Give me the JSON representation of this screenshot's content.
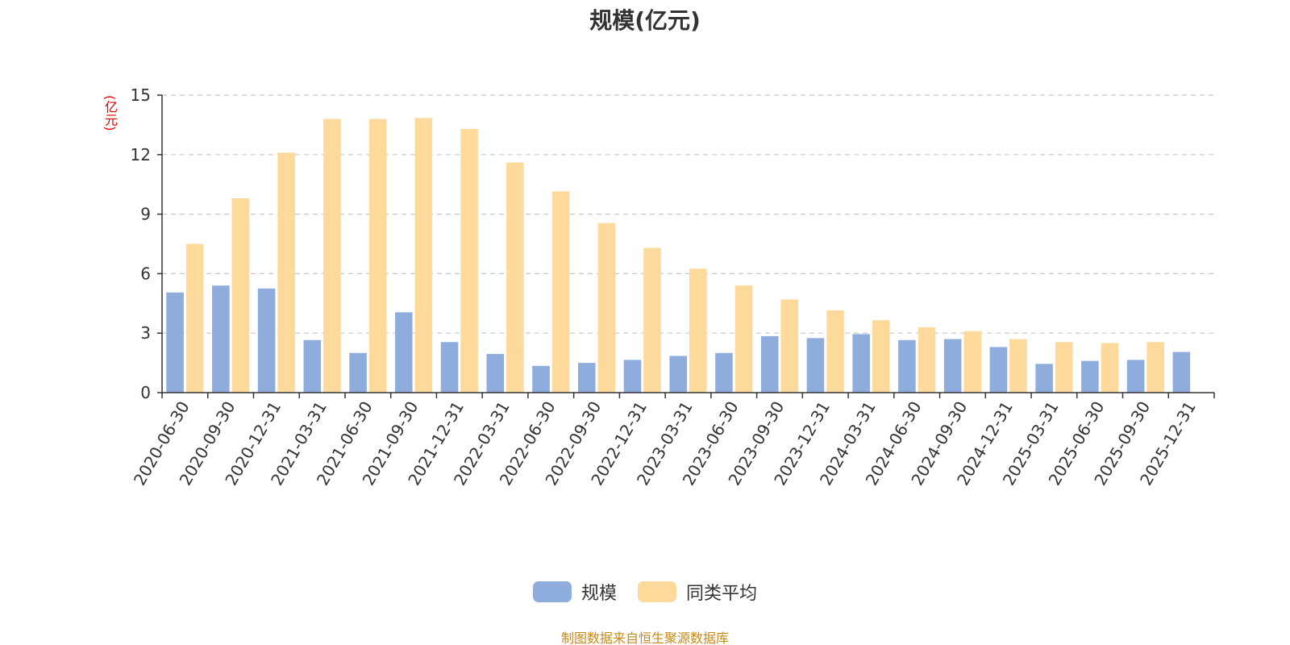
{
  "colors": {
    "series1": "#8eacdc",
    "series2": "#fdd99b",
    "axis": "#333333",
    "grid": "#c8c8c8",
    "unit": "#e00000",
    "source": "#c58a1b"
  },
  "chart_data": {
    "type": "bar",
    "title": "规模(亿元)",
    "ylabel": "(亿元)",
    "categories": [
      "2020-06-30",
      "2020-09-30",
      "2020-12-31",
      "2021-03-31",
      "2021-06-30",
      "2021-09-30",
      "2021-12-31",
      "2022-03-31",
      "2022-06-30",
      "2022-09-30",
      "2022-12-31",
      "2023-03-31",
      "2023-06-30",
      "2023-09-30",
      "2023-12-31",
      "2024-03-31",
      "2024-06-30",
      "2024-09-30",
      "2024-12-31",
      "2025-03-31",
      "2025-06-30",
      "2025-09-30",
      "2025-12-31"
    ],
    "yticks": [
      0,
      3,
      6,
      9,
      12,
      15
    ],
    "ylim": [
      0,
      15
    ],
    "grid": true,
    "legend_position": "bottom-center",
    "series": [
      {
        "name": "规模",
        "values": [
          5.05,
          5.4,
          5.25,
          2.65,
          2.0,
          4.05,
          2.55,
          1.95,
          1.35,
          1.5,
          1.65,
          1.85,
          2.0,
          2.85,
          2.75,
          2.95,
          2.65,
          2.7,
          2.3,
          1.45,
          1.6,
          1.65,
          2.05
        ]
      },
      {
        "name": "同类平均",
        "values": [
          7.5,
          9.8,
          12.1,
          13.8,
          13.8,
          13.85,
          13.3,
          11.6,
          10.15,
          8.55,
          7.3,
          6.25,
          5.4,
          4.7,
          4.15,
          3.65,
          3.3,
          3.1,
          2.7,
          2.55,
          2.5,
          2.55,
          null
        ]
      }
    ]
  },
  "source_text": "制图数据来自恒生聚源数据库"
}
